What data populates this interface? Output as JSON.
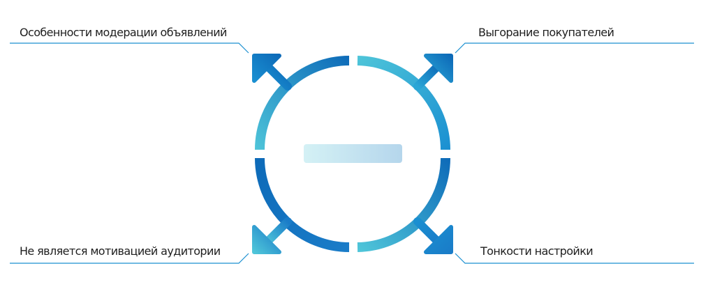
{
  "diagram": {
    "center_symbol": "minus",
    "labels": {
      "top_left": "Особенности модерации объявлений",
      "top_right": "Выгорание покупателей",
      "bottom_left": "Не является мотивацией аудитории",
      "bottom_right": "Тонкости настройки"
    },
    "colors": {
      "dark_blue": "#0d6ab8",
      "light_blue": "#4fc5d9",
      "leader_line": "#1a8fd1",
      "text": "#1e1e1e",
      "center_bar_start": "#d4f1f5",
      "center_bar_end": "#b5d6ec"
    }
  }
}
